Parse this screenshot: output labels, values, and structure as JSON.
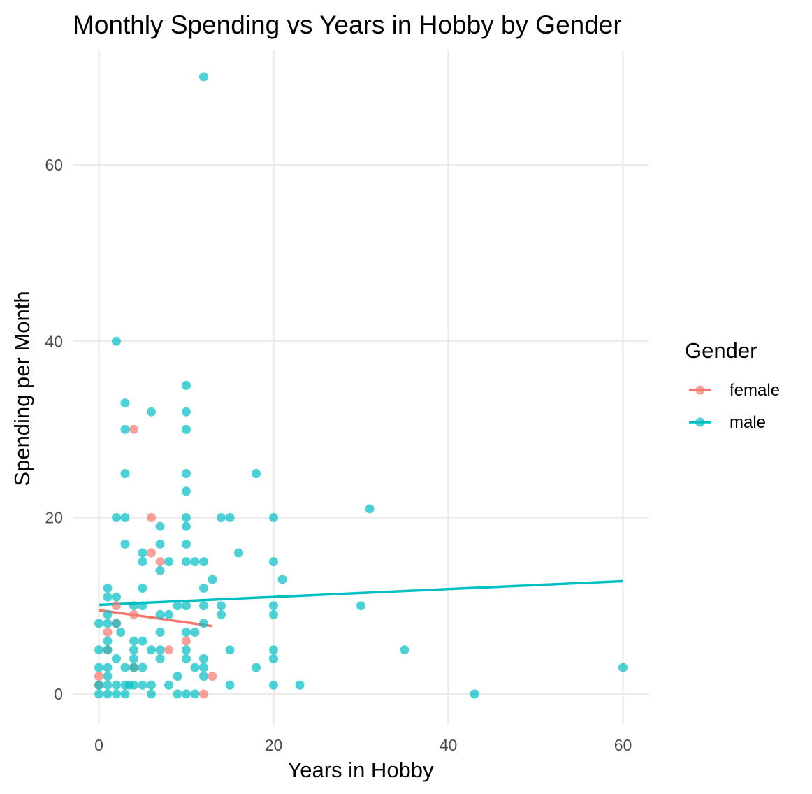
{
  "chart_data": {
    "type": "scatter",
    "title": "Monthly Spending vs Years in Hobby by Gender",
    "xlabel": "Years in Hobby",
    "ylabel": "Spending per Month",
    "xlim": [
      -3,
      63
    ],
    "ylim": [
      -3.5,
      73
    ],
    "x_ticks": [
      0,
      20,
      40,
      60
    ],
    "y_ticks": [
      0,
      20,
      40,
      60
    ],
    "grid": true,
    "legend": {
      "title": "Gender",
      "position": "right"
    },
    "series": [
      {
        "name": "female",
        "color": "#F8766D",
        "points": [
          [
            0,
            1
          ],
          [
            0,
            2
          ],
          [
            1,
            5
          ],
          [
            1,
            7
          ],
          [
            2,
            10
          ],
          [
            4,
            9
          ],
          [
            4,
            30
          ],
          [
            4,
            3
          ],
          [
            6,
            20
          ],
          [
            6,
            16
          ],
          [
            7,
            15
          ],
          [
            8,
            5
          ],
          [
            10,
            6
          ],
          [
            12,
            0
          ],
          [
            13,
            2
          ],
          [
            2,
            8
          ]
        ],
        "trend": {
          "x": [
            0,
            13
          ],
          "y": [
            9.5,
            7.7
          ]
        }
      },
      {
        "name": "male",
        "color": "#00BFC4",
        "points": [
          [
            12,
            70
          ],
          [
            2,
            40
          ],
          [
            10,
            35
          ],
          [
            3,
            33
          ],
          [
            6,
            32
          ],
          [
            10,
            32
          ],
          [
            3,
            30
          ],
          [
            10,
            30
          ],
          [
            3,
            25
          ],
          [
            10,
            25
          ],
          [
            18,
            25
          ],
          [
            10,
            23
          ],
          [
            31,
            21
          ],
          [
            2,
            20
          ],
          [
            3,
            20
          ],
          [
            10,
            20
          ],
          [
            14,
            20
          ],
          [
            15,
            20
          ],
          [
            20,
            20
          ],
          [
            7,
            19
          ],
          [
            10,
            19
          ],
          [
            3,
            17
          ],
          [
            7,
            17
          ],
          [
            10,
            17
          ],
          [
            5,
            16
          ],
          [
            16,
            16
          ],
          [
            5,
            15
          ],
          [
            8,
            15
          ],
          [
            10,
            15
          ],
          [
            11,
            15
          ],
          [
            12,
            15
          ],
          [
            20,
            15
          ],
          [
            7,
            14
          ],
          [
            13,
            13
          ],
          [
            21,
            13
          ],
          [
            1,
            12
          ],
          [
            5,
            12
          ],
          [
            12,
            12
          ],
          [
            1,
            11
          ],
          [
            2,
            11
          ],
          [
            4,
            10
          ],
          [
            5,
            10
          ],
          [
            9,
            10
          ],
          [
            10,
            10
          ],
          [
            12,
            10
          ],
          [
            14,
            10
          ],
          [
            20,
            10
          ],
          [
            30,
            10
          ],
          [
            1,
            9
          ],
          [
            7,
            9
          ],
          [
            8,
            9
          ],
          [
            14,
            9
          ],
          [
            20,
            9
          ],
          [
            0,
            8
          ],
          [
            1,
            8
          ],
          [
            2,
            8
          ],
          [
            12,
            8
          ],
          [
            2.5,
            7
          ],
          [
            7,
            7
          ],
          [
            10,
            7
          ],
          [
            11,
            7
          ],
          [
            1,
            6
          ],
          [
            4,
            6
          ],
          [
            5,
            6
          ],
          [
            0,
            5
          ],
          [
            1,
            5
          ],
          [
            4,
            5
          ],
          [
            6,
            5
          ],
          [
            7,
            5
          ],
          [
            10,
            5
          ],
          [
            15,
            5
          ],
          [
            20,
            5
          ],
          [
            35,
            5
          ],
          [
            2,
            4
          ],
          [
            4,
            4
          ],
          [
            7,
            4
          ],
          [
            10,
            4
          ],
          [
            12,
            4
          ],
          [
            20,
            4
          ],
          [
            0,
            3
          ],
          [
            1,
            3
          ],
          [
            3,
            3
          ],
          [
            4,
            3
          ],
          [
            5,
            3
          ],
          [
            11,
            3
          ],
          [
            12,
            3
          ],
          [
            18,
            3
          ],
          [
            60,
            3
          ],
          [
            1,
            2
          ],
          [
            9,
            2
          ],
          [
            12,
            2
          ],
          [
            0,
            1
          ],
          [
            1,
            1
          ],
          [
            2,
            1
          ],
          [
            3,
            1
          ],
          [
            3.5,
            1
          ],
          [
            4,
            1
          ],
          [
            5,
            1
          ],
          [
            6,
            1
          ],
          [
            8,
            1
          ],
          [
            15,
            1
          ],
          [
            20,
            1
          ],
          [
            23,
            1
          ],
          [
            0,
            0
          ],
          [
            1,
            0
          ],
          [
            2,
            0
          ],
          [
            3,
            0
          ],
          [
            6,
            0
          ],
          [
            9,
            0
          ],
          [
            10,
            0
          ],
          [
            11,
            0
          ],
          [
            43,
            0
          ]
        ],
        "trend": {
          "x": [
            0,
            60
          ],
          "y": [
            10.1,
            12.8
          ]
        }
      }
    ]
  }
}
